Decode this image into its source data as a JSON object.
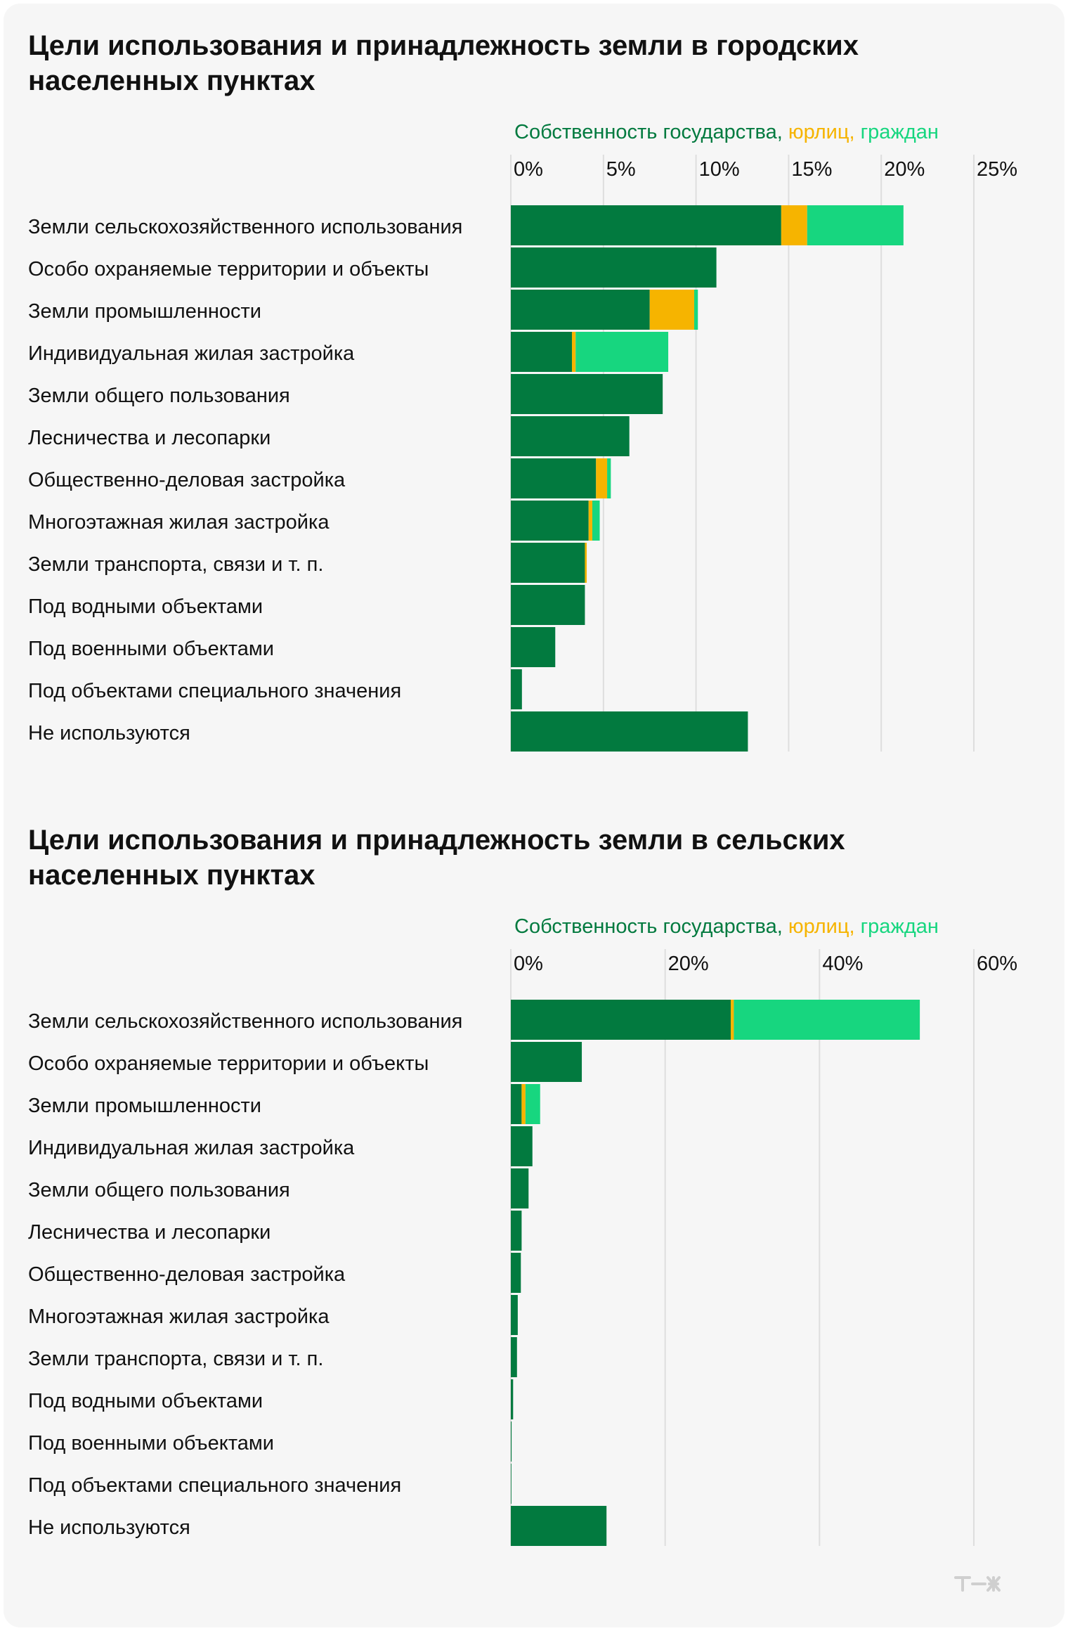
{
  "colors": {
    "state": "#027a3f",
    "legal": "#f6b400",
    "citizen": "#17d67f",
    "background": "#f6f6f6",
    "grid": "#dedede"
  },
  "logo": {
    "icon": "tzh-logo-icon"
  },
  "charts": [
    {
      "title": "Цели использования и принадлежность земли в городских населенных пунктах",
      "legend": {
        "state": "Собственность государства",
        "sep1": ",",
        "legal": " юрлиц",
        "sep2": ",",
        "citizen": " граждан"
      }
    },
    {
      "title": "Цели использования и принадлежность земли в сельских населенных пунктах",
      "legend": {
        "state": "Собственность государства",
        "sep1": ",",
        "legal": " юрлиц",
        "sep2": ",",
        "citizen": " граждан"
      }
    }
  ],
  "chart_data": [
    {
      "type": "bar",
      "orientation": "horizontal",
      "stacked": true,
      "title": "Цели использования и принадлежность земли в городских населенных пунктах",
      "xlim": [
        0,
        25
      ],
      "ticks": [
        0,
        5,
        10,
        15,
        20,
        25
      ],
      "tick_labels": [
        "0%",
        "5%",
        "10%",
        "15%",
        "20%",
        "25%"
      ],
      "grid": true,
      "legend_position": "top",
      "categories": [
        "Земли сельскохозяйственного использования",
        "Особо охраняемые территории и объекты",
        "Земли промышленности",
        "Индивидуальная жилая застройка",
        "Земли общего пользования",
        "Лесничества и лесопарки",
        "Общественно-деловая застройка",
        "Многоэтажная жилая застройка",
        "Земли транспорта, связи и т. п.",
        "Под водными объектами",
        "Под военными объектами",
        "Под объектами специального значения",
        "Не используются"
      ],
      "series": [
        {
          "name": "Собственность государства",
          "color": "#027a3f",
          "values": [
            14.6,
            11.1,
            7.5,
            3.3,
            8.2,
            6.4,
            4.6,
            4.2,
            4.0,
            4.0,
            2.4,
            0.6,
            12.8
          ]
        },
        {
          "name": "юрлиц",
          "color": "#f6b400",
          "values": [
            1.4,
            0,
            2.4,
            0.2,
            0,
            0,
            0.6,
            0.2,
            0.1,
            0,
            0,
            0,
            0
          ]
        },
        {
          "name": "граждан",
          "color": "#17d67f",
          "values": [
            5.2,
            0,
            0.2,
            5.0,
            0,
            0,
            0.2,
            0.4,
            0,
            0,
            0,
            0,
            0
          ]
        }
      ]
    },
    {
      "type": "bar",
      "orientation": "horizontal",
      "stacked": true,
      "title": "Цели использования и принадлежность земли в сельских населенных пунктах",
      "xlim": [
        0,
        60
      ],
      "ticks": [
        0,
        20,
        40,
        60
      ],
      "tick_labels": [
        "0%",
        "20%",
        "40%",
        "60%"
      ],
      "grid": true,
      "legend_position": "top",
      "categories": [
        "Земли сельскохозяйственного использования",
        "Особо охраняемые территории и объекты",
        "Земли промышленности",
        "Индивидуальная жилая застройка",
        "Земли общего пользования",
        "Лесничества и лесопарки",
        "Общественно-деловая застройка",
        "Многоэтажная жилая застройка",
        "Земли транспорта, связи и т. п.",
        "Под водными объектами",
        "Под военными объектами",
        "Под объектами специального значения",
        "Не используются"
      ],
      "series": [
        {
          "name": "Собственность государства",
          "color": "#027a3f",
          "values": [
            28.5,
            9.2,
            1.4,
            2.8,
            2.3,
            1.4,
            1.3,
            0.9,
            0.8,
            0.3,
            0.1,
            0.05,
            12.4
          ]
        },
        {
          "name": "юрлиц",
          "color": "#f6b400",
          "values": [
            0.4,
            0,
            0.5,
            0,
            0,
            0,
            0,
            0,
            0,
            0,
            0,
            0,
            0
          ]
        },
        {
          "name": "граждан",
          "color": "#17d67f",
          "values": [
            24.1,
            0,
            1.9,
            0,
            0,
            0,
            0,
            0,
            0,
            0,
            0,
            0,
            0
          ]
        }
      ]
    }
  ]
}
